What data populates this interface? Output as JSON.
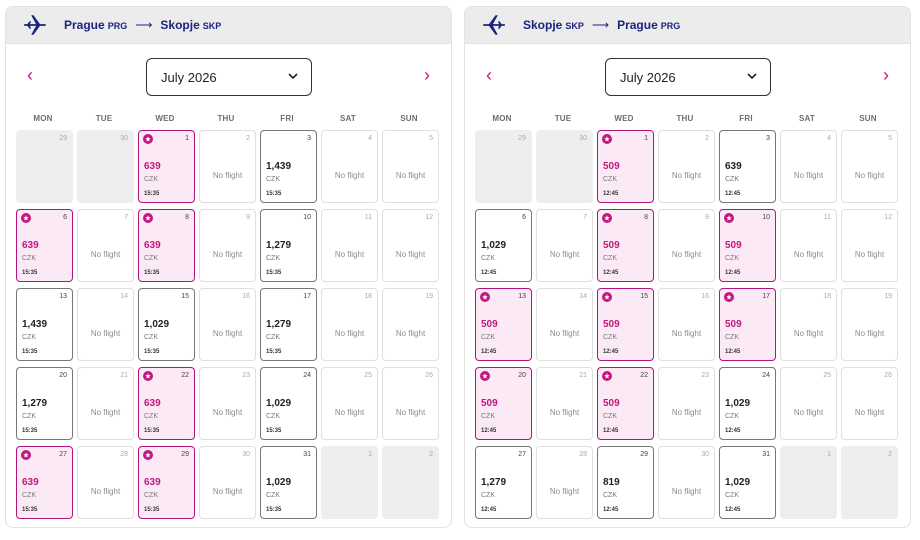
{
  "panels": [
    {
      "id": "outbound",
      "origin": "Prague",
      "origin_code": "PRG",
      "destination": "Skopje",
      "destination_code": "SKP",
      "month": "July 2026",
      "weekdays": [
        "MON",
        "TUE",
        "WED",
        "THU",
        "FRI",
        "SAT",
        "SUN"
      ],
      "currency": "CZK",
      "no_flight_label": "No flight",
      "days": [
        {
          "day": "29",
          "state": "out"
        },
        {
          "day": "30",
          "state": "out"
        },
        {
          "day": "1",
          "state": "best",
          "price": "639",
          "time": "15:35"
        },
        {
          "day": "2",
          "state": "none"
        },
        {
          "day": "3",
          "state": "avail",
          "price": "1,439",
          "time": "15:35"
        },
        {
          "day": "4",
          "state": "none"
        },
        {
          "day": "5",
          "state": "none"
        },
        {
          "day": "6",
          "state": "best",
          "price": "639",
          "time": "15:35"
        },
        {
          "day": "7",
          "state": "none"
        },
        {
          "day": "8",
          "state": "best",
          "price": "639",
          "time": "15:35"
        },
        {
          "day": "9",
          "state": "none"
        },
        {
          "day": "10",
          "state": "avail",
          "price": "1,279",
          "time": "15:35"
        },
        {
          "day": "11",
          "state": "none"
        },
        {
          "day": "12",
          "state": "none"
        },
        {
          "day": "13",
          "state": "avail",
          "price": "1,439",
          "time": "15:35"
        },
        {
          "day": "14",
          "state": "none"
        },
        {
          "day": "15",
          "state": "avail",
          "price": "1,029",
          "time": "15:35"
        },
        {
          "day": "16",
          "state": "none"
        },
        {
          "day": "17",
          "state": "avail",
          "price": "1,279",
          "time": "15:35"
        },
        {
          "day": "18",
          "state": "none"
        },
        {
          "day": "19",
          "state": "none"
        },
        {
          "day": "20",
          "state": "avail",
          "price": "1,279",
          "time": "15:35"
        },
        {
          "day": "21",
          "state": "none"
        },
        {
          "day": "22",
          "state": "best",
          "price": "639",
          "time": "15:35"
        },
        {
          "day": "23",
          "state": "none"
        },
        {
          "day": "24",
          "state": "avail",
          "price": "1,029",
          "time": "15:35"
        },
        {
          "day": "25",
          "state": "none"
        },
        {
          "day": "26",
          "state": "none"
        },
        {
          "day": "27",
          "state": "best",
          "price": "639",
          "time": "15:35"
        },
        {
          "day": "28",
          "state": "none"
        },
        {
          "day": "29",
          "state": "best",
          "price": "639",
          "time": "15:35"
        },
        {
          "day": "30",
          "state": "none"
        },
        {
          "day": "31",
          "state": "avail",
          "price": "1,029",
          "time": "15:35"
        },
        {
          "day": "1",
          "state": "out"
        },
        {
          "day": "2",
          "state": "out"
        }
      ]
    },
    {
      "id": "return",
      "origin": "Skopje",
      "origin_code": "SKP",
      "destination": "Prague",
      "destination_code": "PRG",
      "month": "July 2026",
      "weekdays": [
        "MON",
        "TUE",
        "WED",
        "THU",
        "FRI",
        "SAT",
        "SUN"
      ],
      "currency": "CZK",
      "no_flight_label": "No flight",
      "days": [
        {
          "day": "29",
          "state": "out"
        },
        {
          "day": "30",
          "state": "out"
        },
        {
          "day": "1",
          "state": "best",
          "price": "509",
          "time": "12:45"
        },
        {
          "day": "2",
          "state": "none"
        },
        {
          "day": "3",
          "state": "avail",
          "price": "639",
          "time": "12:45"
        },
        {
          "day": "4",
          "state": "none"
        },
        {
          "day": "5",
          "state": "none"
        },
        {
          "day": "6",
          "state": "avail",
          "price": "1,029",
          "time": "12:45"
        },
        {
          "day": "7",
          "state": "none"
        },
        {
          "day": "8",
          "state": "best",
          "price": "509",
          "time": "12:45"
        },
        {
          "day": "9",
          "state": "none"
        },
        {
          "day": "10",
          "state": "best",
          "price": "509",
          "time": "12:45"
        },
        {
          "day": "11",
          "state": "none"
        },
        {
          "day": "12",
          "state": "none"
        },
        {
          "day": "13",
          "state": "best",
          "price": "509",
          "time": "12:45"
        },
        {
          "day": "14",
          "state": "none"
        },
        {
          "day": "15",
          "state": "best",
          "price": "509",
          "time": "12:45"
        },
        {
          "day": "16",
          "state": "none"
        },
        {
          "day": "17",
          "state": "best",
          "price": "509",
          "time": "12:45"
        },
        {
          "day": "18",
          "state": "none"
        },
        {
          "day": "19",
          "state": "none"
        },
        {
          "day": "20",
          "state": "best",
          "price": "509",
          "time": "12:45"
        },
        {
          "day": "21",
          "state": "none"
        },
        {
          "day": "22",
          "state": "best",
          "price": "509",
          "time": "12:45"
        },
        {
          "day": "23",
          "state": "none"
        },
        {
          "day": "24",
          "state": "avail",
          "price": "1,029",
          "time": "12:45"
        },
        {
          "day": "25",
          "state": "none"
        },
        {
          "day": "26",
          "state": "none"
        },
        {
          "day": "27",
          "state": "avail",
          "price": "1,279",
          "time": "12:45"
        },
        {
          "day": "28",
          "state": "none"
        },
        {
          "day": "29",
          "state": "avail",
          "price": "819",
          "time": "12:45"
        },
        {
          "day": "30",
          "state": "none"
        },
        {
          "day": "31",
          "state": "avail",
          "price": "1,029",
          "time": "12:45"
        },
        {
          "day": "1",
          "state": "out"
        },
        {
          "day": "2",
          "state": "out"
        }
      ]
    }
  ],
  "colors": {
    "accent": "#c2187e",
    "accent_bg": "#fbeaf5",
    "navy": "#1a237e",
    "header_bg": "#ececec"
  },
  "icons": {
    "prev": "chevron-left-icon",
    "next": "chevron-right-icon",
    "dropdown": "chevron-down-icon",
    "plane": "airplane-icon",
    "best_price": "star-badge-icon"
  }
}
